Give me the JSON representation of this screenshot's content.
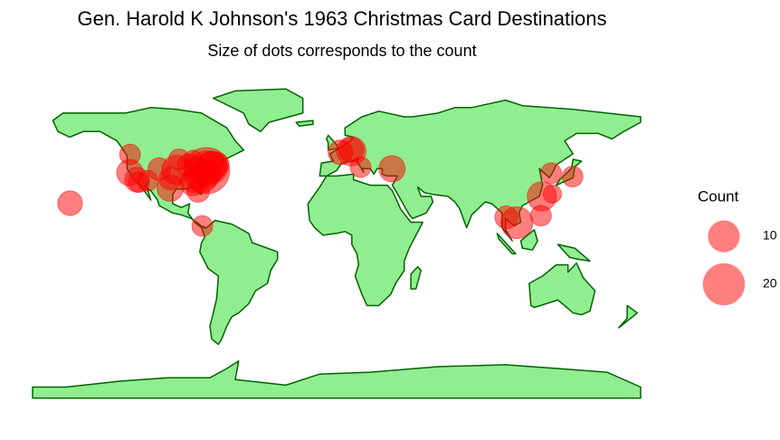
{
  "chart_data": {
    "type": "bubble-map",
    "title": "Gen. Harold K Johnson's 1963 Christmas Card Destinations",
    "subtitle": "Size of dots corresponds to the count",
    "xlim": [
      -180,
      180
    ],
    "ylim": [
      -90,
      90
    ],
    "color": "#ff0000",
    "land_color": "#90ee90",
    "border_color": "#006400",
    "lon": [
      -157.8,
      -79.5,
      -122.3,
      -122.4,
      -118.2,
      -117.2,
      -105.0,
      -98.5,
      -94.9,
      -87.6,
      -93.3,
      -84.4,
      -85.0,
      -82.0,
      -74.0,
      -77.0,
      -77.0,
      -71.1,
      -79.0,
      -76.3,
      -74.0,
      -83.0,
      -98.4,
      -111.9,
      -85.0,
      8.7,
      2.3,
      8.7,
      14.2,
      32.8,
      106.7,
      100.5,
      121.5,
      121.0,
      127.7,
      127.0,
      139.7
    ],
    "lat": [
      21.3,
      9.0,
      47.6,
      37.8,
      34.0,
      32.7,
      39.7,
      29.4,
      39.3,
      41.9,
      45.0,
      33.7,
      32.4,
      28.0,
      40.7,
      38.9,
      40.3,
      42.3,
      35.2,
      37.0,
      41.4,
      40.0,
      34.6,
      33.4,
      45.0,
      49.4,
      48.8,
      50.1,
      40.8,
      39.9,
      10.8,
      13.7,
      25.0,
      14.6,
      26.3,
      37.5,
      35.7
    ],
    "count": [
      5,
      3,
      3,
      6,
      5,
      3,
      4,
      6,
      8,
      4,
      3,
      5,
      6,
      4,
      10,
      25,
      12,
      5,
      8,
      6,
      8,
      4,
      4,
      3,
      2,
      8,
      5,
      5,
      3,
      6,
      10,
      4,
      8,
      3,
      2,
      3,
      3
    ],
    "size_legend": {
      "title": "Count",
      "breaks": [
        10,
        20
      ]
    }
  }
}
